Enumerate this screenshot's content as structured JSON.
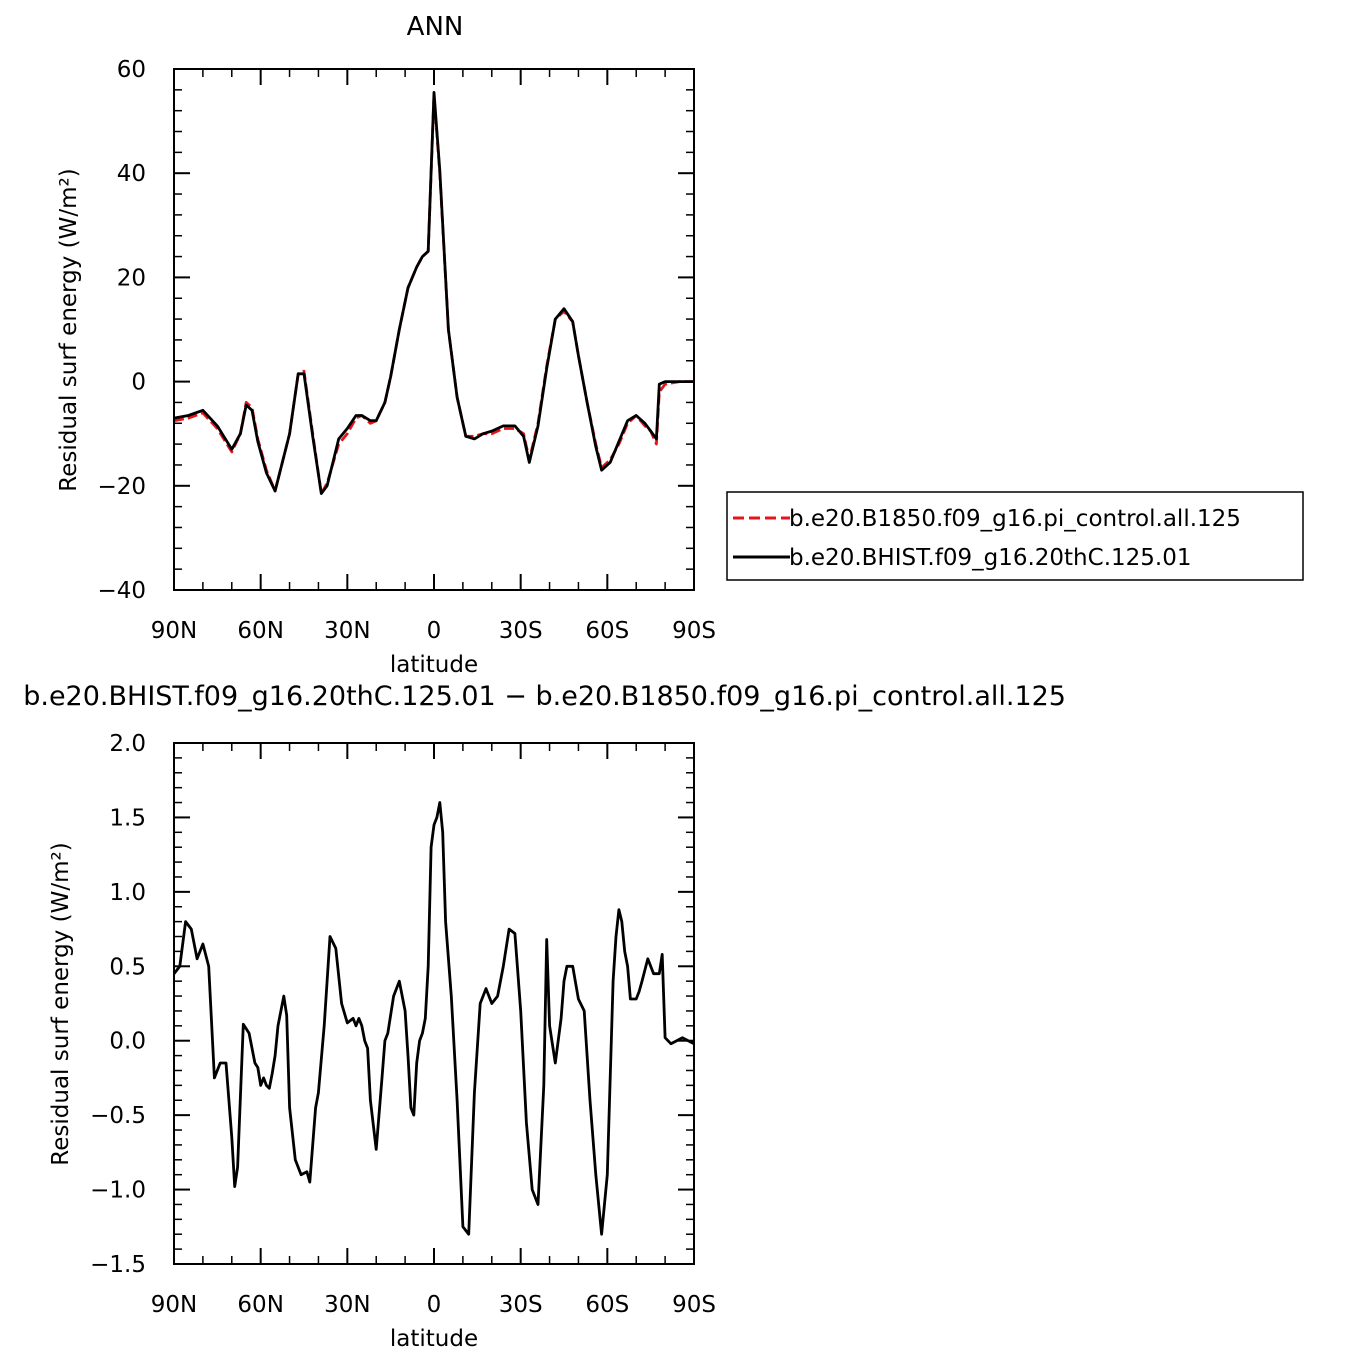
{
  "chart_data": [
    {
      "type": "line",
      "title": "ANN",
      "xlabel": "latitude",
      "ylabel": "Residual surf energy (W/m²)",
      "xlim": [
        90,
        -90
      ],
      "ylim": [
        -40,
        60
      ],
      "yticks": [
        -40,
        -20,
        0,
        20,
        40,
        60
      ],
      "ytick_labels": [
        "−40",
        "−20",
        "0",
        "20",
        "40",
        "60"
      ],
      "xticks": [
        90,
        60,
        30,
        0,
        -30,
        -60,
        -90
      ],
      "xtick_labels": [
        "90N",
        "60N",
        "30N",
        "0",
        "30S",
        "60S",
        "90S"
      ],
      "grid": false,
      "legend": "right",
      "series": [
        {
          "name": "b.e20.B1850.f09_g16.pi_control.all.125",
          "color": "#e8141a",
          "style": "dashed",
          "x": [
            90,
            85,
            80,
            75,
            70,
            67,
            65,
            63,
            61,
            58,
            55,
            50,
            47,
            45,
            42,
            39,
            37,
            33,
            30,
            27,
            25,
            22,
            20,
            17,
            15,
            12,
            9,
            6,
            4,
            2,
            0,
            -2,
            -5,
            -8,
            -11,
            -14,
            -17,
            -20,
            -24,
            -28,
            -31,
            -33,
            -36,
            -39,
            -42,
            -45,
            -48,
            -50,
            -53,
            -56,
            -58,
            -61,
            -64,
            -67,
            -70,
            -73,
            -75,
            -77,
            -78,
            -80,
            -85,
            -90
          ],
          "y": [
            -7.5,
            -7,
            -6,
            -9,
            -13.5,
            -10,
            -4,
            -5,
            -11,
            -17,
            -21,
            -10,
            1.5,
            2,
            -10,
            -21.5,
            -19.5,
            -12,
            -10,
            -7,
            -6.5,
            -8,
            -7.5,
            -4,
            1,
            10,
            18,
            22,
            24,
            25,
            55,
            40,
            10,
            -3,
            -10.5,
            -10.5,
            -10,
            -10,
            -9,
            -9,
            -10,
            -15,
            -8,
            3,
            12,
            13.5,
            11.5,
            5,
            -4,
            -12,
            -16.5,
            -15,
            -12,
            -8,
            -6.5,
            -8.5,
            -9.5,
            -12,
            -2,
            -0.5,
            0,
            0
          ]
        },
        {
          "name": "b.e20.BHIST.f09_g16.20thC.125.01",
          "color": "#000000",
          "style": "solid",
          "x": [
            90,
            85,
            80,
            75,
            70,
            67,
            65,
            63,
            61,
            58,
            55,
            50,
            47,
            45,
            42,
            39,
            37,
            33,
            30,
            27,
            25,
            22,
            20,
            17,
            15,
            12,
            9,
            6,
            4,
            2,
            0,
            -2,
            -5,
            -8,
            -11,
            -14,
            -17,
            -20,
            -24,
            -28,
            -31,
            -33,
            -36,
            -39,
            -42,
            -45,
            -48,
            -50,
            -53,
            -56,
            -58,
            -61,
            -64,
            -67,
            -70,
            -73,
            -75,
            -77,
            -78,
            -80,
            -85,
            -90
          ],
          "y": [
            -7,
            -6.5,
            -5.5,
            -8.5,
            -13,
            -10,
            -4.5,
            -5.5,
            -11.5,
            -17.5,
            -21,
            -10,
            1.5,
            1.5,
            -10.5,
            -21.5,
            -20,
            -11,
            -9,
            -6.5,
            -6.5,
            -7.5,
            -7.5,
            -4,
            1,
            10,
            18,
            22,
            24,
            25,
            55.5,
            40.5,
            10,
            -3,
            -10.5,
            -11,
            -10,
            -9.5,
            -8.5,
            -8.5,
            -10.5,
            -15.5,
            -8.5,
            2.5,
            12,
            14,
            11.5,
            5,
            -4,
            -12.5,
            -17,
            -15.5,
            -11.5,
            -7.5,
            -6.5,
            -8,
            -9.5,
            -11,
            -0.5,
            0,
            0,
            0
          ]
        }
      ]
    },
    {
      "type": "line",
      "title": "b.e20.BHIST.f09_g16.20thC.125.01 − b.e20.B1850.f09_g16.pi_control.all.125",
      "xlabel": "latitude",
      "ylabel": "Residual surf energy (W/m²)",
      "xlim": [
        90,
        -90
      ],
      "ylim": [
        -1.5,
        2.0
      ],
      "yticks": [
        -1.5,
        -1.0,
        -0.5,
        0.0,
        0.5,
        1.0,
        1.5,
        2.0
      ],
      "ytick_labels": [
        "−1.5",
        "−1.0",
        "−0.5",
        "0.0",
        "0.5",
        "1.0",
        "1.5",
        "2.0"
      ],
      "xticks": [
        90,
        60,
        30,
        0,
        -30,
        -60,
        -90
      ],
      "xtick_labels": [
        "90N",
        "60N",
        "30N",
        "0",
        "30S",
        "60S",
        "90S"
      ],
      "grid": false,
      "series": [
        {
          "color": "#000000",
          "style": "solid",
          "x": [
            90,
            88,
            86,
            84,
            82,
            80,
            78,
            76,
            74,
            72,
            70,
            69,
            68,
            66,
            64,
            62,
            61,
            60,
            59,
            58,
            57,
            56,
            55,
            54,
            53,
            52,
            51,
            50,
            48,
            46,
            44,
            43,
            42,
            41,
            40,
            38,
            36,
            34,
            32,
            30,
            28,
            27,
            26,
            25,
            24,
            23,
            22,
            20,
            18,
            17,
            16,
            14,
            12,
            10,
            9,
            8,
            7,
            6,
            5,
            4,
            3,
            2,
            1,
            0,
            -1,
            -2,
            -3,
            -4,
            -6,
            -8,
            -10,
            -12,
            -14,
            -16,
            -18,
            -20,
            -22,
            -24,
            -26,
            -28,
            -30,
            -32,
            -34,
            -36,
            -38,
            -39,
            -40,
            -42,
            -44,
            -45,
            -46,
            -48,
            -50,
            -52,
            -54,
            -56,
            -58,
            -60,
            -62,
            -63,
            -64,
            -65,
            -66,
            -67,
            -68,
            -69,
            -70,
            -71,
            -72,
            -74,
            -76,
            -77,
            -78,
            -79,
            -80,
            -82,
            -84,
            -86,
            -88,
            -90
          ],
          "y": [
            0.45,
            0.5,
            0.8,
            0.75,
            0.55,
            0.65,
            0.5,
            -0.25,
            -0.15,
            -0.15,
            -0.65,
            -0.98,
            -0.85,
            0.11,
            0.05,
            -0.15,
            -0.18,
            -0.3,
            -0.25,
            -0.3,
            -0.32,
            -0.22,
            -0.1,
            0.1,
            0.2,
            0.3,
            0.17,
            -0.45,
            -0.8,
            -0.9,
            -0.88,
            -0.95,
            -0.7,
            -0.45,
            -0.35,
            0.1,
            0.7,
            0.62,
            0.25,
            0.12,
            0.15,
            0.1,
            0.15,
            0.1,
            0.0,
            -0.05,
            -0.4,
            -0.73,
            -0.25,
            0.0,
            0.05,
            0.3,
            0.4,
            0.2,
            -0.1,
            -0.45,
            -0.5,
            -0.15,
            0.0,
            0.05,
            0.15,
            0.5,
            1.3,
            1.45,
            1.5,
            1.6,
            1.4,
            0.8,
            0.3,
            -0.4,
            -1.25,
            -1.3,
            -0.35,
            0.25,
            0.35,
            0.25,
            0.3,
            0.5,
            0.75,
            0.72,
            0.2,
            -0.55,
            -1.0,
            -1.1,
            -0.3,
            0.68,
            0.1,
            -0.15,
            0.15,
            0.4,
            0.5,
            0.5,
            0.28,
            0.2,
            -0.4,
            -0.9,
            -1.3,
            -0.9,
            0.4,
            0.7,
            0.88,
            0.8,
            0.6,
            0.5,
            0.28,
            0.28,
            0.28,
            0.33,
            0.4,
            0.55,
            0.45,
            0.45,
            0.45,
            0.58,
            0.02,
            -0.02,
            0.0,
            0.02,
            0.0,
            -0.02
          ]
        }
      ]
    }
  ]
}
